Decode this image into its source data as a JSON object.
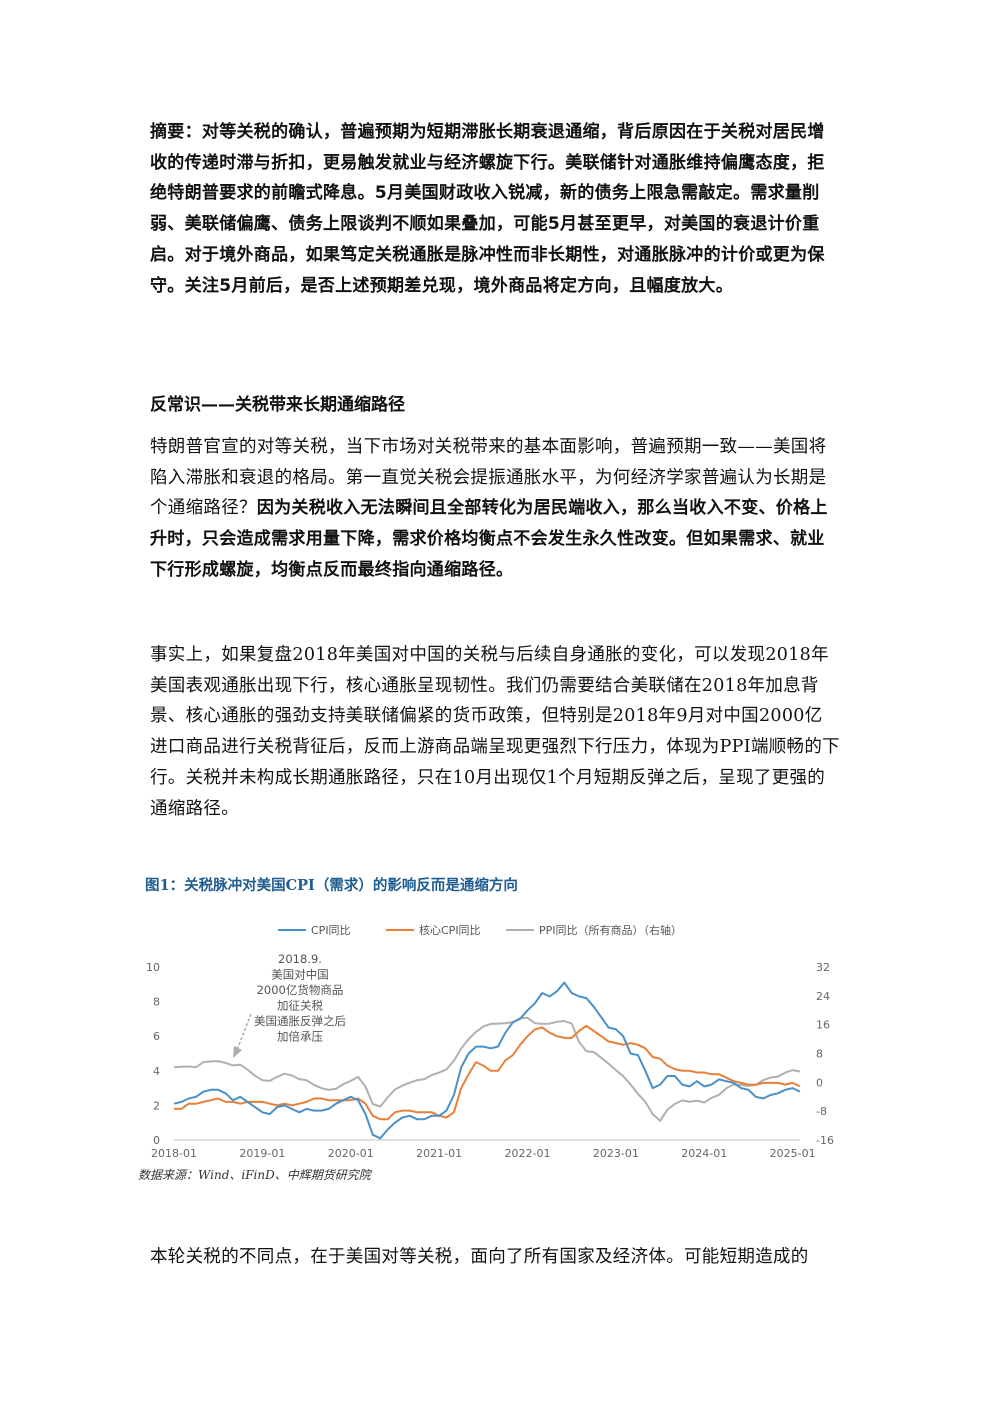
{
  "abstract": "摘要：对等关税的确认，普遍预期为短期滞胀长期衰退通缩，背后原因在于关税对居民增收的传递时滞与折扣，更易触发就业与经济螺旋下行。美联储针对通胀维持偏鹰态度，拒绝特朗普要求的前瞻式降息。5月美国财政收入锐减，新的债务上限急需敲定。需求量削弱、美联储偏鹰、债务上限谈判不顺如果叠加，可能5月甚至更早，对美国的衰退计价重启。对于境外商品，如果笃定关税通胀是脉冲性而非长期性，对通胀脉冲的计价或更为保守。关注5月前后，是否上述预期差兑现，境外商品将定方向，且幅度放大。",
  "section_heading": "反常识——关税带来长期通缩路径",
  "para1": {
    "normal": "特朗普官宣的对等关税，当下市场对关税带来的基本面影响，普遍预期一致——美国将陷入滞胀和衰退的格局。第一直觉关税会提振通胀水平，为何经济学家普遍认为长期是个通缩路径？",
    "bold": "因为关税收入无法瞬间且全部转化为居民端收入，那么当收入不变、价格上升时，只会造成需求用量下降，需求价格均衡点不会发生永久性改变。但如果需求、就业下行形成螺旋，均衡点反而最终指向通缩路径。"
  },
  "para2": "事实上，如果复盘2018年美国对中国的关税与后续自身通胀的变化，可以发现2018年美国表观通胀出现下行，核心通胀呈现韧性。我们仍需要结合美联储在2018年加息背景、核心通胀的强劲支持美联储偏紧的货币政策，但特别是2018年9月对中国2000亿进口商品进行关税背征后，反而上游商品端呈现更强烈下行压力，体现为PPI端顺畅的下行。关税并未构成长期通胀路径，只在10月出现仅1个月短期反弹之后，呈现了更强的通缩路径。",
  "figure_title": "图1：关税脉冲对美国CPI（需求）的影响反而是通缩方向",
  "figure_source": "数据来源：Wind、iFinD、中辉期货研究院",
  "para3": "本轮关税的不同点，在于美国对等关税，面向了所有国家及经济体。可能短期造成的",
  "chart_data": {
    "type": "line",
    "title": "",
    "xlabel": "",
    "ylabel": "",
    "x_ticks": [
      "2018-01",
      "2019-01",
      "2020-01",
      "2021-01",
      "2022-01",
      "2023-01",
      "2024-01",
      "2025-01"
    ],
    "y_left_ticks": [
      "0",
      "2",
      "4",
      "6",
      "8",
      "10"
    ],
    "y_right_ticks": [
      "-16",
      "-8",
      "0",
      "8",
      "16",
      "24",
      "32"
    ],
    "ylim_left": [
      0,
      10
    ],
    "ylim_right": [
      -16,
      32
    ],
    "legend_position": "top",
    "annotation": [
      "2018.9.",
      "美国对中国",
      "2000亿货物商品",
      "加征关税",
      "美国通胀反弹之后",
      "加倍承压"
    ],
    "series": [
      {
        "name": "CPI同比",
        "axis": "left",
        "color": "#4a90c8",
        "values": [
          2.1,
          2.2,
          2.4,
          2.5,
          2.8,
          2.9,
          2.9,
          2.7,
          2.3,
          2.5,
          2.2,
          1.9,
          1.6,
          1.5,
          1.9,
          2.0,
          1.8,
          1.6,
          1.8,
          1.7,
          1.7,
          1.8,
          2.1,
          2.3,
          2.5,
          2.3,
          1.5,
          0.3,
          0.1,
          0.6,
          1.0,
          1.3,
          1.4,
          1.2,
          1.2,
          1.4,
          1.4,
          1.7,
          2.6,
          4.2,
          5.0,
          5.4,
          5.4,
          5.3,
          5.4,
          6.2,
          6.8,
          7.0,
          7.5,
          7.9,
          8.5,
          8.3,
          8.6,
          9.1,
          8.5,
          8.3,
          8.2,
          7.7,
          7.1,
          6.5,
          6.4,
          6.0,
          5.0,
          4.9,
          4.0,
          3.0,
          3.2,
          3.7,
          3.7,
          3.2,
          3.1,
          3.4,
          3.1,
          3.2,
          3.5,
          3.4,
          3.3,
          3.0,
          2.9,
          2.5,
          2.4,
          2.6,
          2.7,
          2.9,
          3.0,
          2.8
        ]
      },
      {
        "name": "核心CPI同比",
        "axis": "left",
        "color": "#e8803a",
        "values": [
          1.8,
          1.8,
          2.1,
          2.1,
          2.2,
          2.3,
          2.4,
          2.2,
          2.2,
          2.1,
          2.2,
          2.2,
          2.2,
          2.1,
          2.0,
          2.1,
          2.0,
          2.1,
          2.2,
          2.4,
          2.4,
          2.3,
          2.3,
          2.3,
          2.3,
          2.4,
          2.1,
          1.4,
          1.2,
          1.2,
          1.6,
          1.7,
          1.7,
          1.6,
          1.6,
          1.6,
          1.4,
          1.3,
          1.6,
          3.0,
          3.8,
          4.5,
          4.3,
          4.0,
          4.0,
          4.6,
          4.9,
          5.5,
          6.0,
          6.4,
          6.5,
          6.2,
          6.0,
          5.9,
          5.9,
          6.3,
          6.6,
          6.3,
          6.0,
          5.7,
          5.6,
          5.5,
          5.6,
          5.5,
          5.3,
          4.8,
          4.7,
          4.3,
          4.1,
          4.0,
          4.0,
          3.9,
          3.9,
          3.8,
          3.8,
          3.6,
          3.4,
          3.3,
          3.2,
          3.2,
          3.3,
          3.3,
          3.3,
          3.2,
          3.3,
          3.1
        ]
      },
      {
        "name": "PPI同比（所有商品）（右轴）",
        "axis": "right",
        "color": "#b0b0b0",
        "values": [
          4.2,
          4.3,
          4.4,
          4.2,
          5.6,
          5.8,
          5.9,
          5.4,
          4.7,
          4.9,
          3.5,
          1.8,
          0.6,
          0.4,
          1.5,
          2.4,
          1.9,
          0.9,
          0.6,
          -0.7,
          -1.6,
          -2.1,
          -1.8,
          -0.5,
          0.4,
          1.5,
          -1.2,
          -6.0,
          -6.7,
          -4.2,
          -2.0,
          -0.9,
          -0.1,
          0.6,
          0.9,
          2.0,
          2.7,
          3.6,
          6.0,
          9.4,
          12.0,
          14.0,
          15.5,
          16.2,
          16.3,
          16.4,
          16.7,
          17.8,
          17.9,
          16.4,
          16.2,
          16.3,
          16.8,
          17.0,
          16.3,
          11.2,
          8.6,
          8.4,
          6.8,
          5.2,
          3.4,
          1.7,
          -0.6,
          -3.2,
          -5.4,
          -8.8,
          -10.7,
          -7.6,
          -6.0,
          -5.0,
          -5.4,
          -5.1,
          -5.6,
          -4.3,
          -3.5,
          -1.6,
          -0.6,
          -0.7,
          -1.0,
          -0.7,
          0.6,
          1.3,
          1.6,
          2.7,
          3.4,
          3.0
        ]
      }
    ]
  }
}
